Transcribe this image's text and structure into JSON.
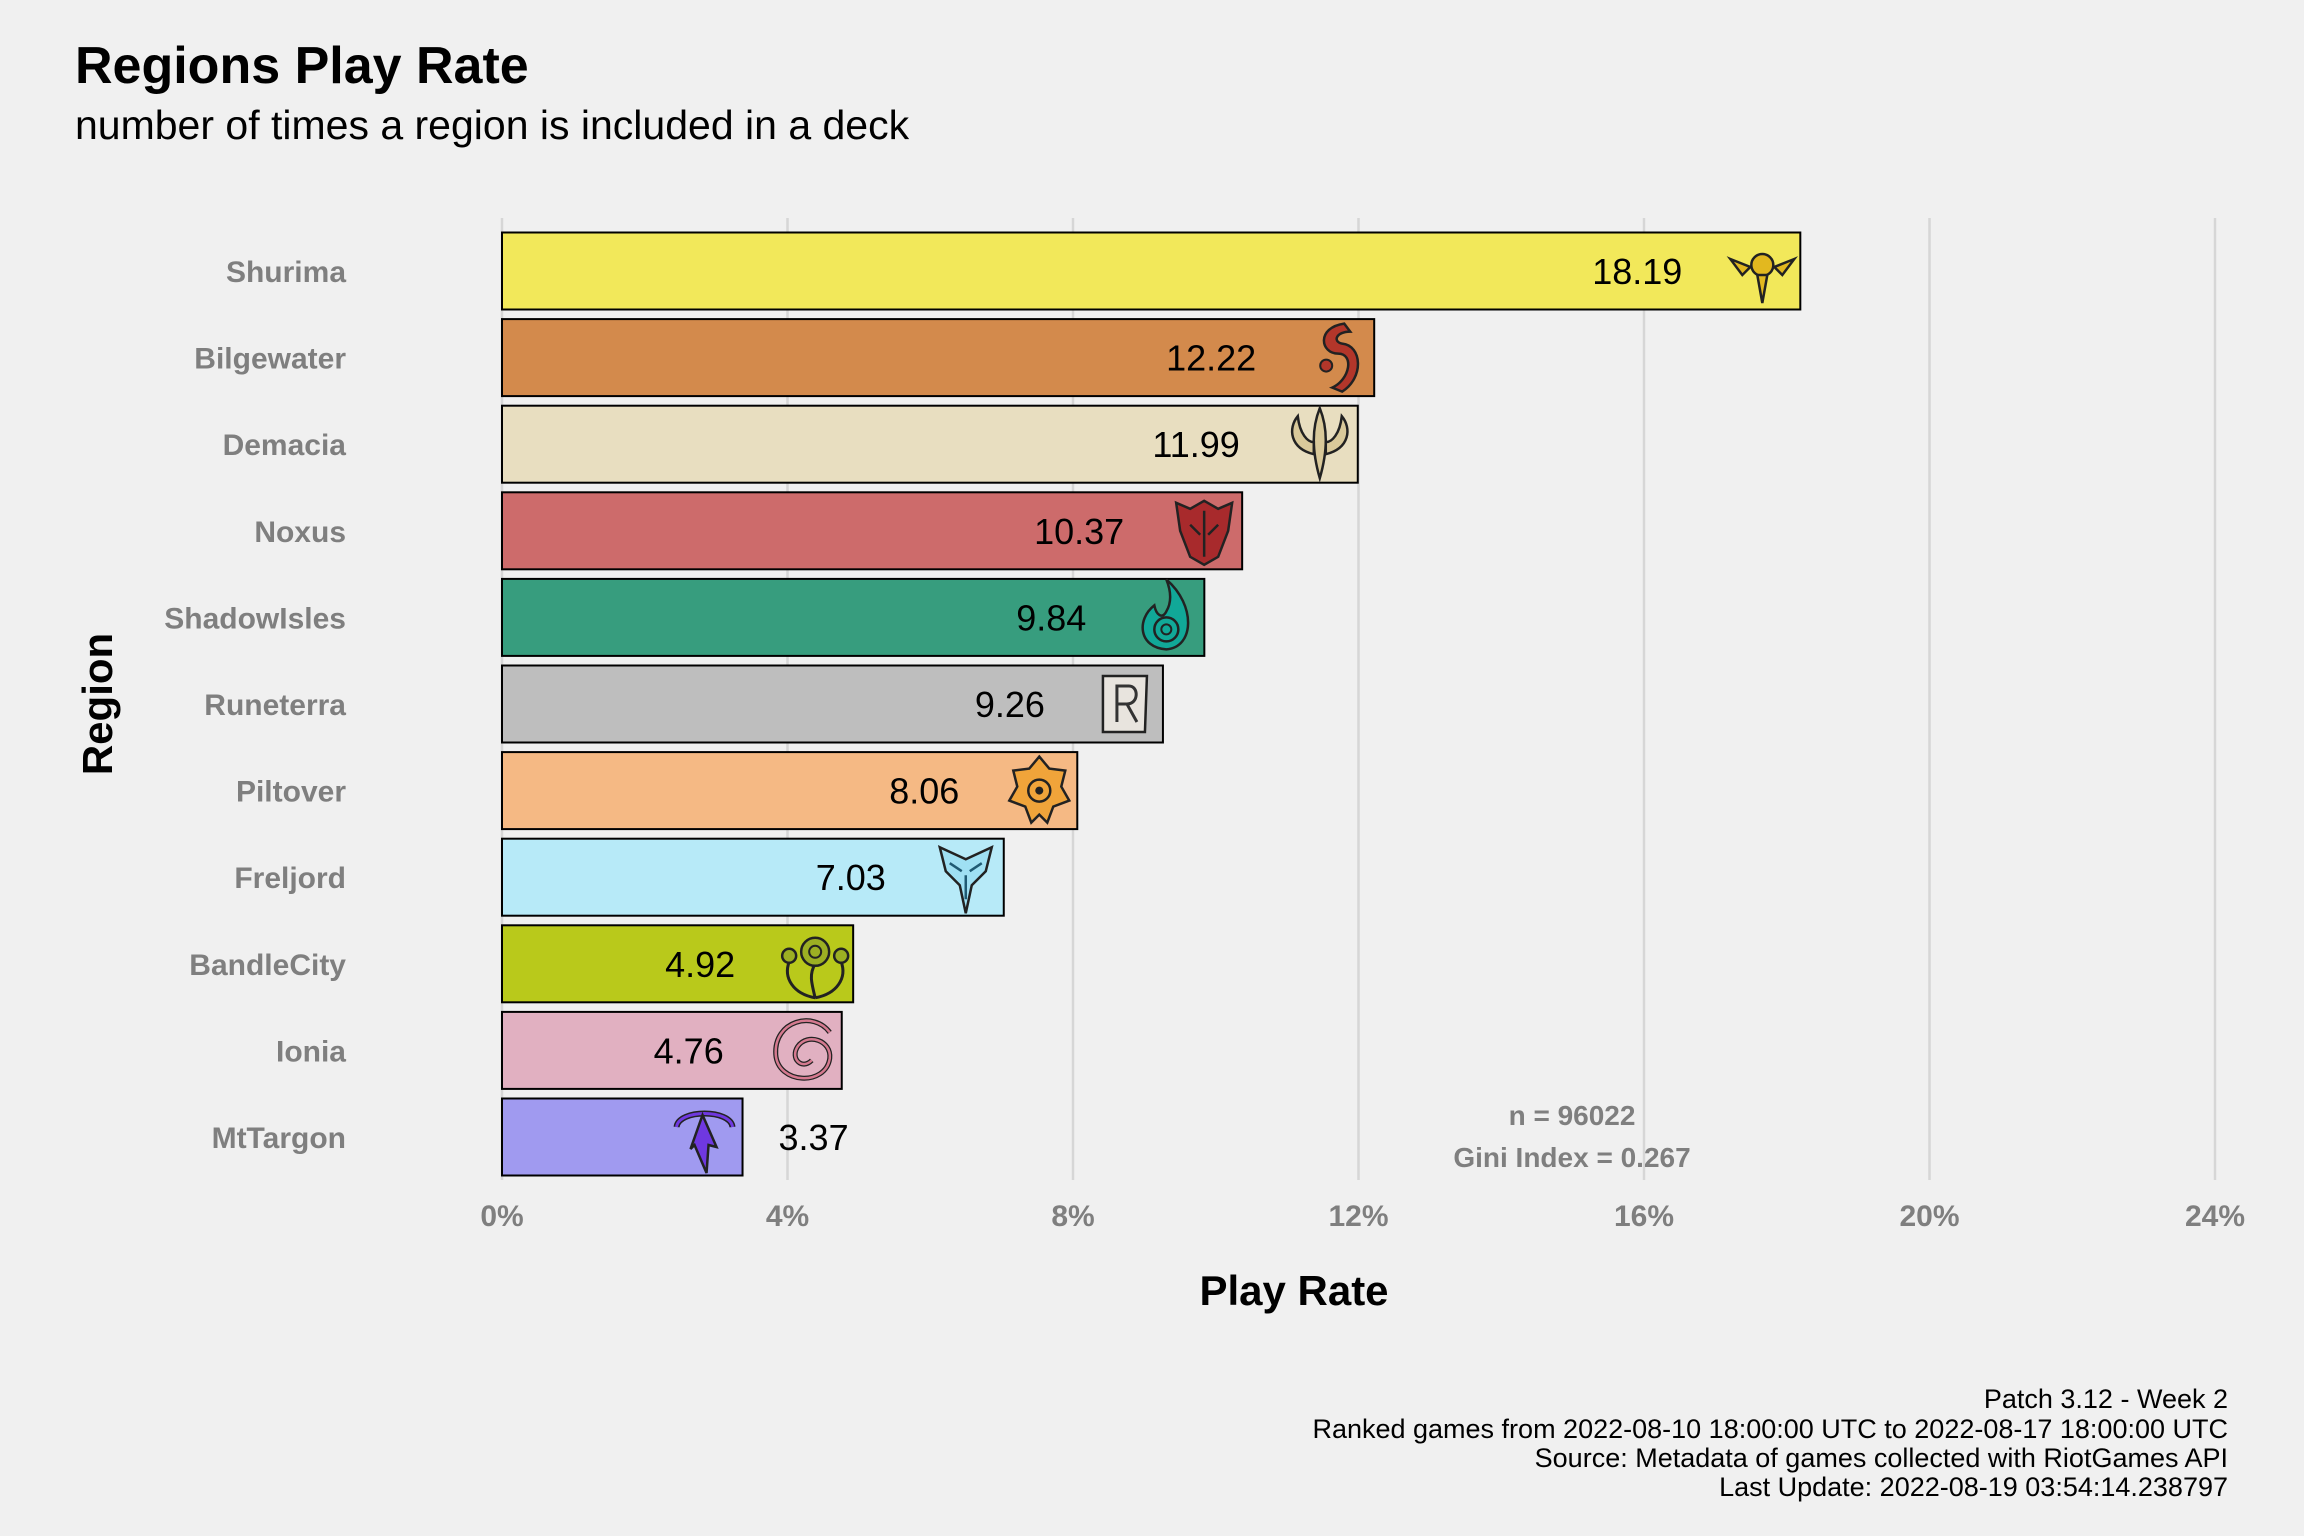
{
  "chart_data": {
    "type": "bar",
    "orientation": "horizontal",
    "title": "Regions Play Rate",
    "subtitle": "number of times a region is included in a deck",
    "xlabel": "Play Rate",
    "ylabel": "Region",
    "xlim": [
      0,
      24
    ],
    "x_ticks": [
      "0%",
      "4%",
      "8%",
      "12%",
      "16%",
      "20%",
      "24%"
    ],
    "grid": "vertical major gridlines",
    "legend": "none",
    "categories": [
      "Shurima",
      "Bilgewater",
      "Demacia",
      "Noxus",
      "ShadowIsles",
      "Runeterra",
      "Piltover",
      "Freljord",
      "BandleCity",
      "Ionia",
      "MtTargon"
    ],
    "values": [
      18.19,
      12.22,
      11.99,
      10.37,
      9.84,
      9.26,
      8.06,
      7.03,
      4.92,
      4.76,
      3.37
    ],
    "value_labels": [
      "18.19",
      "12.22",
      "11.99",
      "10.37",
      "9.84",
      "9.26",
      "8.06",
      "7.03",
      "4.92",
      "4.76",
      "3.37"
    ],
    "colors": [
      "#f2e85a",
      "#d38a4c",
      "#e8dec0",
      "#cd6b6b",
      "#379d7e",
      "#bebebe",
      "#f5b984",
      "#b7eaf8",
      "#b9c91b",
      "#e1b0c1",
      "#a09af0"
    ],
    "icon_colors": [
      "#e2b81f",
      "#b3362a",
      "#d9c99a",
      "#a82a2c",
      "#11a898",
      "#e8e4de",
      "#f0a43a",
      "#9fe0f3",
      "#9caf23",
      "#d5798f",
      "#6f38e0"
    ],
    "icons": [
      "shurima-icon",
      "bilgewater-icon",
      "demacia-icon",
      "noxus-icon",
      "shadowisles-icon",
      "runeterra-icon",
      "piltover-icon",
      "freljord-icon",
      "bandlecity-icon",
      "ionia-icon",
      "mttargon-icon"
    ],
    "annotations": [
      "n = 96022",
      "Gini Index = 0.267"
    ],
    "caption": [
      "Patch 3.12 - Week 2",
      "Ranked games from 2022-08-10 18:00:00 UTC to 2022-08-17 18:00:00 UTC",
      "Source: Metadata of games collected with RiotGames API",
      "Last Update: 2022-08-19 03:54:14.238797"
    ]
  }
}
